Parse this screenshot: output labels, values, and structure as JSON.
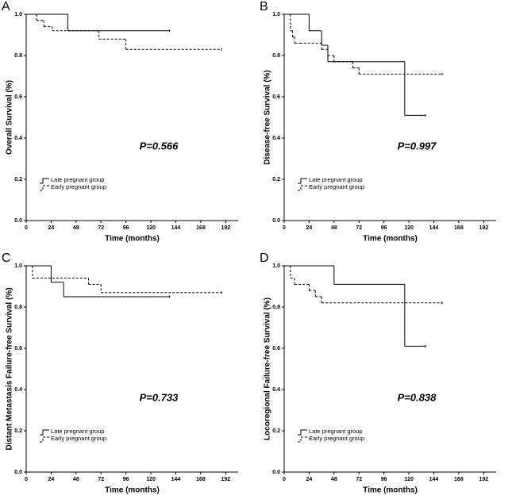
{
  "chart_data": [
    {
      "type": "line",
      "step": true,
      "panel_label": "A",
      "ylabel": "Overall Survival (%)",
      "xlabel": "Time (months)",
      "annotation": "P=0.566",
      "xlim": [
        0,
        204
      ],
      "xticks": [
        0,
        24,
        48,
        72,
        96,
        120,
        144,
        168,
        192
      ],
      "ylim": [
        0,
        1.0
      ],
      "yticks": [
        {
          "value": 0,
          "label": "0.0"
        },
        {
          "value": 0.2,
          "label": "0.2"
        },
        {
          "value": 0.4,
          "label": "0.4"
        },
        {
          "value": 0.6,
          "label": "0.6"
        },
        {
          "value": 0.8,
          "label": "0.8"
        },
        {
          "value": 1.0,
          "label": "1.0"
        }
      ],
      "series": [
        {
          "name": "Late pregnant group",
          "color": "#000000",
          "line_style": "solid",
          "x": [
            0,
            40,
            138
          ],
          "values": [
            1.0,
            0.92,
            0.92
          ]
        },
        {
          "name": "Early pregnant group",
          "color": "#000000",
          "line_style": "dashed",
          "x": [
            0,
            10,
            17,
            25,
            70,
            96,
            188
          ],
          "values": [
            1.0,
            0.97,
            0.94,
            0.92,
            0.88,
            0.83,
            0.83
          ]
        }
      ]
    },
    {
      "type": "line",
      "step": true,
      "panel_label": "B",
      "ylabel": "Disease-free Survival (%)",
      "xlabel": "Time (months)",
      "annotation": "P=0.997",
      "xlim": [
        0,
        204
      ],
      "xticks": [
        0,
        24,
        48,
        72,
        96,
        120,
        144,
        168,
        192
      ],
      "ylim": [
        0,
        1.0
      ],
      "yticks": [
        {
          "value": 0,
          "label": "0.0"
        },
        {
          "value": 0.2,
          "label": "0.2"
        },
        {
          "value": 0.4,
          "label": "0.4"
        },
        {
          "value": 0.6,
          "label": "0.6"
        },
        {
          "value": 0.8,
          "label": "0.8"
        },
        {
          "value": 1.0,
          "label": "1.0"
        }
      ],
      "series": [
        {
          "name": "Late pregnant group",
          "color": "#000000",
          "line_style": "solid",
          "x": [
            0,
            24,
            36,
            42,
            116,
            136
          ],
          "values": [
            1.0,
            0.92,
            0.85,
            0.77,
            0.51,
            0.51
          ]
        },
        {
          "name": "Early pregnant group",
          "color": "#000000",
          "line_style": "dashed",
          "x": [
            0,
            6,
            8,
            10,
            15,
            36,
            42,
            48,
            66,
            72,
            152
          ],
          "values": [
            1.0,
            0.92,
            0.89,
            0.86,
            0.86,
            0.83,
            0.8,
            0.77,
            0.74,
            0.71,
            0.71
          ]
        }
      ]
    },
    {
      "type": "line",
      "step": true,
      "panel_label": "C",
      "ylabel": "Distant Metastasis Failure-free Survival (%)",
      "xlabel": "Time (months)",
      "annotation": "P=0.733",
      "xlim": [
        0,
        204
      ],
      "xticks": [
        0,
        24,
        48,
        72,
        96,
        120,
        144,
        168,
        192
      ],
      "ylim": [
        0,
        1.0
      ],
      "yticks": [
        {
          "value": 0,
          "label": "0.0"
        },
        {
          "value": 0.2,
          "label": "0.2"
        },
        {
          "value": 0.4,
          "label": "0.4"
        },
        {
          "value": 0.6,
          "label": "0.6"
        },
        {
          "value": 0.8,
          "label": "0.8"
        },
        {
          "value": 1.0,
          "label": "1.0"
        }
      ],
      "series": [
        {
          "name": "Late pregnant group",
          "color": "#000000",
          "line_style": "solid",
          "x": [
            0,
            24,
            36,
            138
          ],
          "values": [
            1.0,
            0.92,
            0.85,
            0.85
          ]
        },
        {
          "name": "Early pregnant group",
          "color": "#000000",
          "line_style": "dashed",
          "x": [
            0,
            6,
            60,
            72,
            188
          ],
          "values": [
            1.0,
            0.94,
            0.91,
            0.87,
            0.87
          ]
        }
      ]
    },
    {
      "type": "line",
      "step": true,
      "panel_label": "D",
      "ylabel": "Locoregional Failure-free Survival (%)",
      "xlabel": "Time (months)",
      "annotation": "P=0.838",
      "xlim": [
        0,
        204
      ],
      "xticks": [
        0,
        24,
        48,
        72,
        96,
        120,
        144,
        168,
        192
      ],
      "ylim": [
        0,
        1.0
      ],
      "yticks": [
        {
          "value": 0,
          "label": "0.0"
        },
        {
          "value": 0.2,
          "label": "0.2"
        },
        {
          "value": 0.4,
          "label": "0.4"
        },
        {
          "value": 0.6,
          "label": "0.6"
        },
        {
          "value": 0.8,
          "label": "0.8"
        },
        {
          "value": 1.0,
          "label": "1.0"
        }
      ],
      "series": [
        {
          "name": "Late pregnant group",
          "color": "#000000",
          "line_style": "solid",
          "x": [
            0,
            48,
            116,
            136
          ],
          "values": [
            1.0,
            0.91,
            0.61,
            0.61
          ]
        },
        {
          "name": "Early pregnant group",
          "color": "#000000",
          "line_style": "dashed",
          "x": [
            0,
            6,
            10,
            24,
            30,
            36,
            40,
            152
          ],
          "values": [
            1.0,
            0.94,
            0.91,
            0.88,
            0.85,
            0.82,
            0.82,
            0.82
          ]
        }
      ]
    }
  ]
}
